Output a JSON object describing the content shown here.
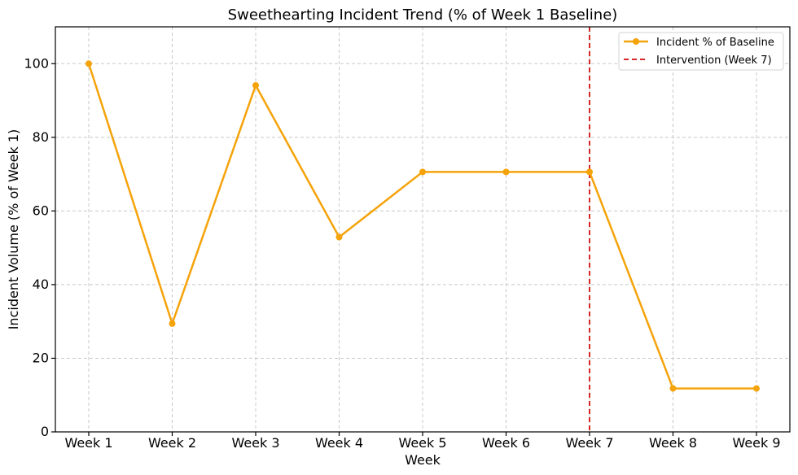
{
  "chart_data": {
    "type": "line",
    "title": "Sweethearting Incident Trend (% of Week 1 Baseline)",
    "xlabel": "Week",
    "ylabel": "Incident Volume (% of Week 1)",
    "categories": [
      "Week 1",
      "Week 2",
      "Week 3",
      "Week 4",
      "Week 5",
      "Week 6",
      "Week 7",
      "Week 8",
      "Week 9"
    ],
    "series": [
      {
        "name": "Incident % of Baseline",
        "values": [
          100,
          29.4,
          94.1,
          52.9,
          70.6,
          70.6,
          70.6,
          11.8,
          11.8
        ],
        "color": "#f5a30a",
        "marker": "circle"
      }
    ],
    "reference_lines": [
      {
        "name": "Intervention (Week 7)",
        "category": "Week 7",
        "color": "#d62728",
        "style": "dashed"
      }
    ],
    "ylim": [
      0,
      110
    ],
    "yticks": [
      0,
      20,
      40,
      60,
      80,
      100
    ],
    "grid": true,
    "legend_position": "top-right"
  }
}
